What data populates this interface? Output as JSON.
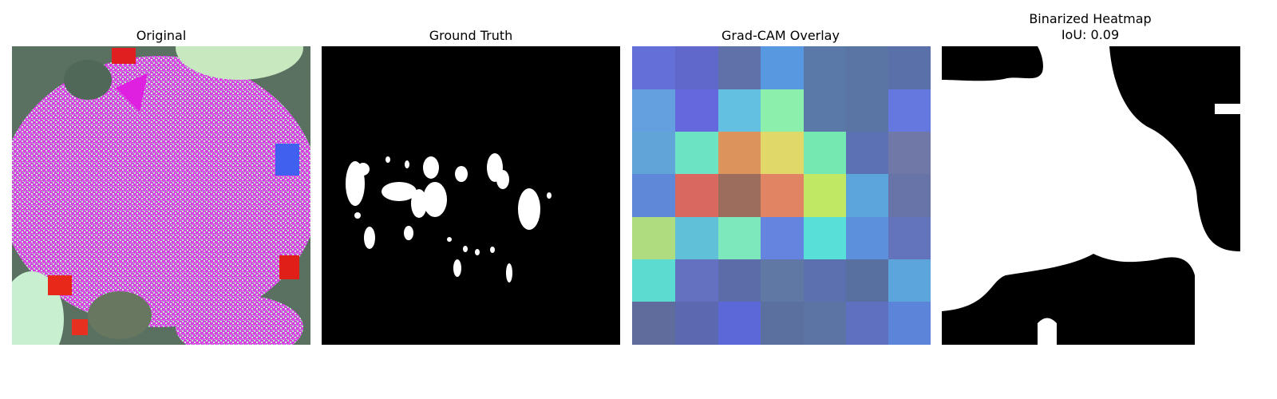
{
  "panels": [
    {
      "title": "Original"
    },
    {
      "title": "Ground Truth"
    },
    {
      "title": "Grad-CAM Overlay"
    },
    {
      "title": "Binarized Heatmap",
      "subtitle": "IoU: 0.09"
    }
  ]
}
